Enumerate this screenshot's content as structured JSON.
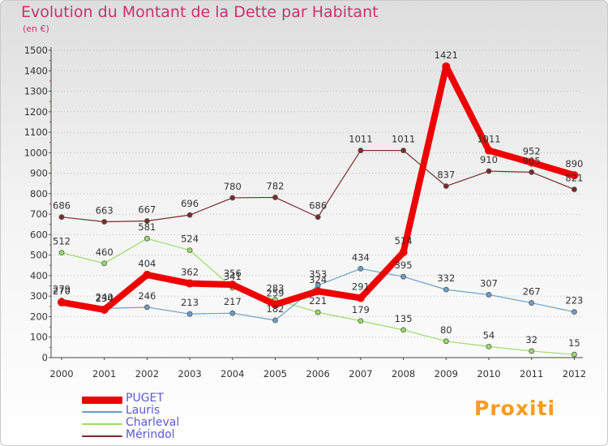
{
  "chart_data": {
    "type": "line",
    "title": "Evolution du Montant de la Dette par Habitant",
    "subtitle": "(en €)",
    "categories": [
      "2000",
      "2001",
      "2002",
      "2003",
      "2004",
      "2005",
      "2006",
      "2007",
      "2008",
      "2009",
      "2010",
      "2011",
      "2012"
    ],
    "ylim": [
      0,
      1500
    ],
    "yticks": [
      0,
      100,
      200,
      300,
      400,
      500,
      600,
      700,
      800,
      900,
      1000,
      1100,
      1200,
      1300,
      1400,
      1500
    ],
    "grid": "horizontal dotted",
    "legend_position": "bottom-left",
    "series": [
      {
        "name": "PUGET",
        "color": "#ee0000",
        "values": [
          270,
          234,
          404,
          362,
          356,
          259,
          324,
          291,
          514,
          1421,
          1011,
          952,
          890
        ]
      },
      {
        "name": "Lauris",
        "color": "#6a9fcb",
        "values": [
          279,
          240,
          246,
          213,
          217,
          182,
          353,
          434,
          395,
          332,
          307,
          267,
          223
        ]
      },
      {
        "name": "Charleval",
        "color": "#99dd66",
        "values": [
          512,
          460,
          581,
          524,
          341,
          283,
          221,
          179,
          135,
          80,
          54,
          32,
          15
        ]
      },
      {
        "name": "Mérindol",
        "color": "#7a2a2a",
        "values": [
          686,
          663,
          667,
          696,
          780,
          782,
          686,
          1011,
          1011,
          837,
          910,
          905,
          821
        ]
      }
    ]
  },
  "brand": {
    "text": "Proxiti"
  }
}
